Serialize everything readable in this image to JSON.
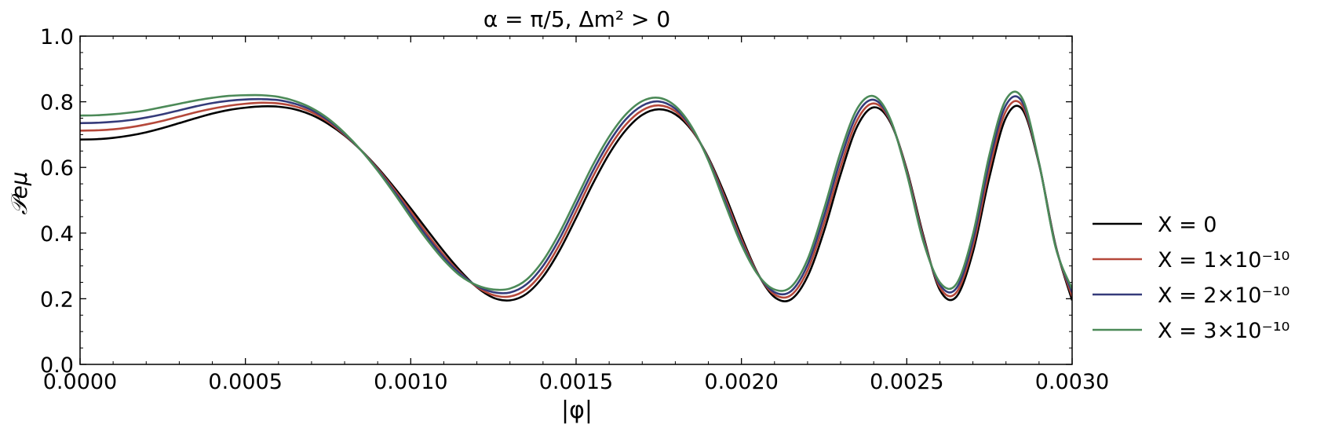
{
  "chart_data": {
    "type": "line",
    "title": "α = π/5, Δm² > 0",
    "xlabel": "|φ|",
    "ylabel": "𝒫eμ",
    "xlim": [
      0,
      0.003
    ],
    "ylim": [
      0,
      1.0
    ],
    "x_ticks": [
      "0.0000",
      "0.0005",
      "0.0010",
      "0.0015",
      "0.0020",
      "0.0025",
      "0.0030"
    ],
    "y_ticks": [
      "0.0",
      "0.2",
      "0.4",
      "0.6",
      "0.8",
      "1.0"
    ],
    "grid": false,
    "legend_position": "right-outside",
    "x": [
      0,
      5e-05,
      0.0001,
      0.00015,
      0.0002,
      0.00025,
      0.0003,
      0.00035,
      0.0004,
      0.00045,
      0.0005,
      0.00055,
      0.0006,
      0.00065,
      0.0007,
      0.00075,
      0.0008,
      0.00085,
      0.0009,
      0.00095,
      0.001,
      0.00105,
      0.0011,
      0.00115,
      0.0012,
      0.00125,
      0.0013,
      0.00135,
      0.0014,
      0.00145,
      0.0015,
      0.00155,
      0.0016,
      0.00165,
      0.0017,
      0.00175,
      0.0018,
      0.00185,
      0.0019,
      0.00195,
      0.002,
      0.00205,
      0.0021,
      0.00215,
      0.0022,
      0.00225,
      0.0023,
      0.00235,
      0.0024,
      0.00245,
      0.0025,
      0.00255,
      0.0026,
      0.00265,
      0.0027,
      0.00275,
      0.0028,
      0.00285,
      0.0029,
      0.00295,
      0.003
    ],
    "series": [
      {
        "name": "X = 0",
        "color": "#000000",
        "values": [
          0.685,
          0.686,
          0.69,
          0.697,
          0.707,
          0.72,
          0.735,
          0.75,
          0.764,
          0.775,
          0.782,
          0.786,
          0.785,
          0.777,
          0.76,
          0.733,
          0.697,
          0.652,
          0.599,
          0.539,
          0.475,
          0.409,
          0.344,
          0.285,
          0.235,
          0.203,
          0.195,
          0.215,
          0.267,
          0.347,
          0.446,
          0.549,
          0.641,
          0.713,
          0.76,
          0.777,
          0.762,
          0.713,
          0.63,
          0.517,
          0.39,
          0.276,
          0.205,
          0.198,
          0.268,
          0.407,
          0.579,
          0.725,
          0.783,
          0.738,
          0.594,
          0.393,
          0.227,
          0.206,
          0.342,
          0.571,
          0.752,
          0.776,
          0.61,
          0.363,
          0.195
        ]
      },
      {
        "name": "X = 1×10⁻¹⁰",
        "color": "#b5483a",
        "values": [
          0.712,
          0.713,
          0.716,
          0.722,
          0.731,
          0.742,
          0.755,
          0.768,
          0.779,
          0.788,
          0.794,
          0.797,
          0.795,
          0.786,
          0.768,
          0.739,
          0.699,
          0.652,
          0.596,
          0.533,
          0.466,
          0.397,
          0.333,
          0.279,
          0.236,
          0.211,
          0.207,
          0.229,
          0.283,
          0.365,
          0.466,
          0.57,
          0.66,
          0.73,
          0.774,
          0.789,
          0.771,
          0.716,
          0.627,
          0.508,
          0.381,
          0.275,
          0.213,
          0.211,
          0.286,
          0.43,
          0.602,
          0.744,
          0.795,
          0.742,
          0.59,
          0.387,
          0.235,
          0.219,
          0.36,
          0.594,
          0.772,
          0.787,
          0.612,
          0.361,
          0.207
        ]
      },
      {
        "name": "X = 2×10⁻¹⁰",
        "color": "#353b7a",
        "values": [
          0.735,
          0.736,
          0.739,
          0.744,
          0.752,
          0.762,
          0.774,
          0.786,
          0.796,
          0.803,
          0.807,
          0.808,
          0.805,
          0.794,
          0.775,
          0.744,
          0.702,
          0.652,
          0.593,
          0.527,
          0.457,
          0.388,
          0.326,
          0.276,
          0.239,
          0.22,
          0.219,
          0.244,
          0.3,
          0.383,
          0.485,
          0.588,
          0.677,
          0.746,
          0.788,
          0.801,
          0.779,
          0.72,
          0.624,
          0.499,
          0.372,
          0.274,
          0.22,
          0.223,
          0.303,
          0.452,
          0.625,
          0.762,
          0.806,
          0.745,
          0.585,
          0.38,
          0.243,
          0.232,
          0.378,
          0.617,
          0.79,
          0.798,
          0.613,
          0.359,
          0.219
        ]
      },
      {
        "name": "X = 3×10⁻¹⁰",
        "color": "#4c8a58",
        "values": [
          0.758,
          0.759,
          0.762,
          0.767,
          0.774,
          0.784,
          0.794,
          0.804,
          0.812,
          0.818,
          0.82,
          0.82,
          0.815,
          0.802,
          0.781,
          0.749,
          0.705,
          0.652,
          0.59,
          0.521,
          0.448,
          0.379,
          0.318,
          0.27,
          0.241,
          0.228,
          0.231,
          0.258,
          0.316,
          0.401,
          0.503,
          0.606,
          0.694,
          0.761,
          0.802,
          0.812,
          0.787,
          0.723,
          0.621,
          0.49,
          0.365,
          0.273,
          0.228,
          0.236,
          0.32,
          0.474,
          0.647,
          0.779,
          0.817,
          0.748,
          0.581,
          0.374,
          0.25,
          0.245,
          0.396,
          0.639,
          0.807,
          0.809,
          0.614,
          0.357,
          0.23
        ]
      }
    ]
  }
}
